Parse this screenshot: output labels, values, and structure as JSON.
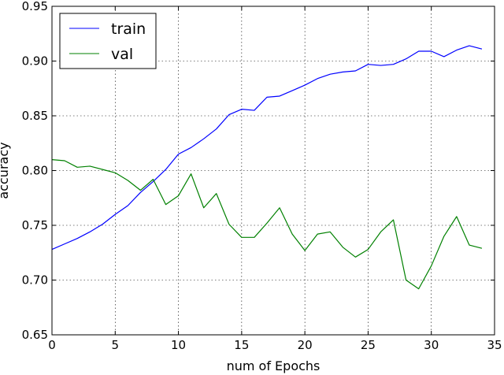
{
  "chart_data": {
    "type": "line",
    "xlabel": "num of Epochs",
    "ylabel": "accuracy",
    "xlim": [
      0,
      35
    ],
    "ylim": [
      0.65,
      0.95
    ],
    "xticks": [
      0,
      5,
      10,
      15,
      20,
      25,
      30,
      35
    ],
    "yticks": [
      0.65,
      0.7,
      0.75,
      0.8,
      0.85,
      0.9,
      0.95
    ],
    "xtick_labels": [
      "0",
      "5",
      "10",
      "15",
      "20",
      "25",
      "30",
      "35"
    ],
    "ytick_labels": [
      "0.65",
      "0.70",
      "0.75",
      "0.80",
      "0.85",
      "0.90",
      "0.95"
    ],
    "grid": true,
    "legend_position": "top-left",
    "series": [
      {
        "name": "train",
        "color": "#0000ff",
        "x": [
          0,
          1,
          2,
          3,
          4,
          5,
          6,
          7,
          8,
          9,
          10,
          11,
          12,
          13,
          14,
          15,
          16,
          17,
          18,
          19,
          20,
          21,
          22,
          23,
          24,
          25,
          26,
          27,
          28,
          29,
          30,
          31,
          32,
          33,
          34
        ],
        "y": [
          0.728,
          0.733,
          0.738,
          0.744,
          0.751,
          0.76,
          0.768,
          0.78,
          0.79,
          0.801,
          0.815,
          0.821,
          0.829,
          0.838,
          0.851,
          0.856,
          0.855,
          0.867,
          0.868,
          0.873,
          0.878,
          0.884,
          0.888,
          0.89,
          0.891,
          0.897,
          0.896,
          0.897,
          0.902,
          0.909,
          0.909,
          0.904,
          0.91,
          0.914,
          0.911
        ]
      },
      {
        "name": "val",
        "color": "#008000",
        "x": [
          0,
          1,
          2,
          3,
          4,
          5,
          6,
          7,
          8,
          9,
          10,
          11,
          12,
          13,
          14,
          15,
          16,
          17,
          18,
          19,
          20,
          21,
          22,
          23,
          24,
          25,
          26,
          27,
          28,
          29,
          30,
          31,
          32,
          33,
          34
        ],
        "y": [
          0.81,
          0.809,
          0.803,
          0.804,
          0.801,
          0.798,
          0.791,
          0.782,
          0.792,
          0.769,
          0.777,
          0.797,
          0.766,
          0.779,
          0.751,
          0.739,
          0.739,
          0.752,
          0.766,
          0.742,
          0.727,
          0.742,
          0.744,
          0.73,
          0.721,
          0.728,
          0.744,
          0.755,
          0.7,
          0.692,
          0.713,
          0.74,
          0.758,
          0.732,
          0.729
        ]
      }
    ]
  }
}
